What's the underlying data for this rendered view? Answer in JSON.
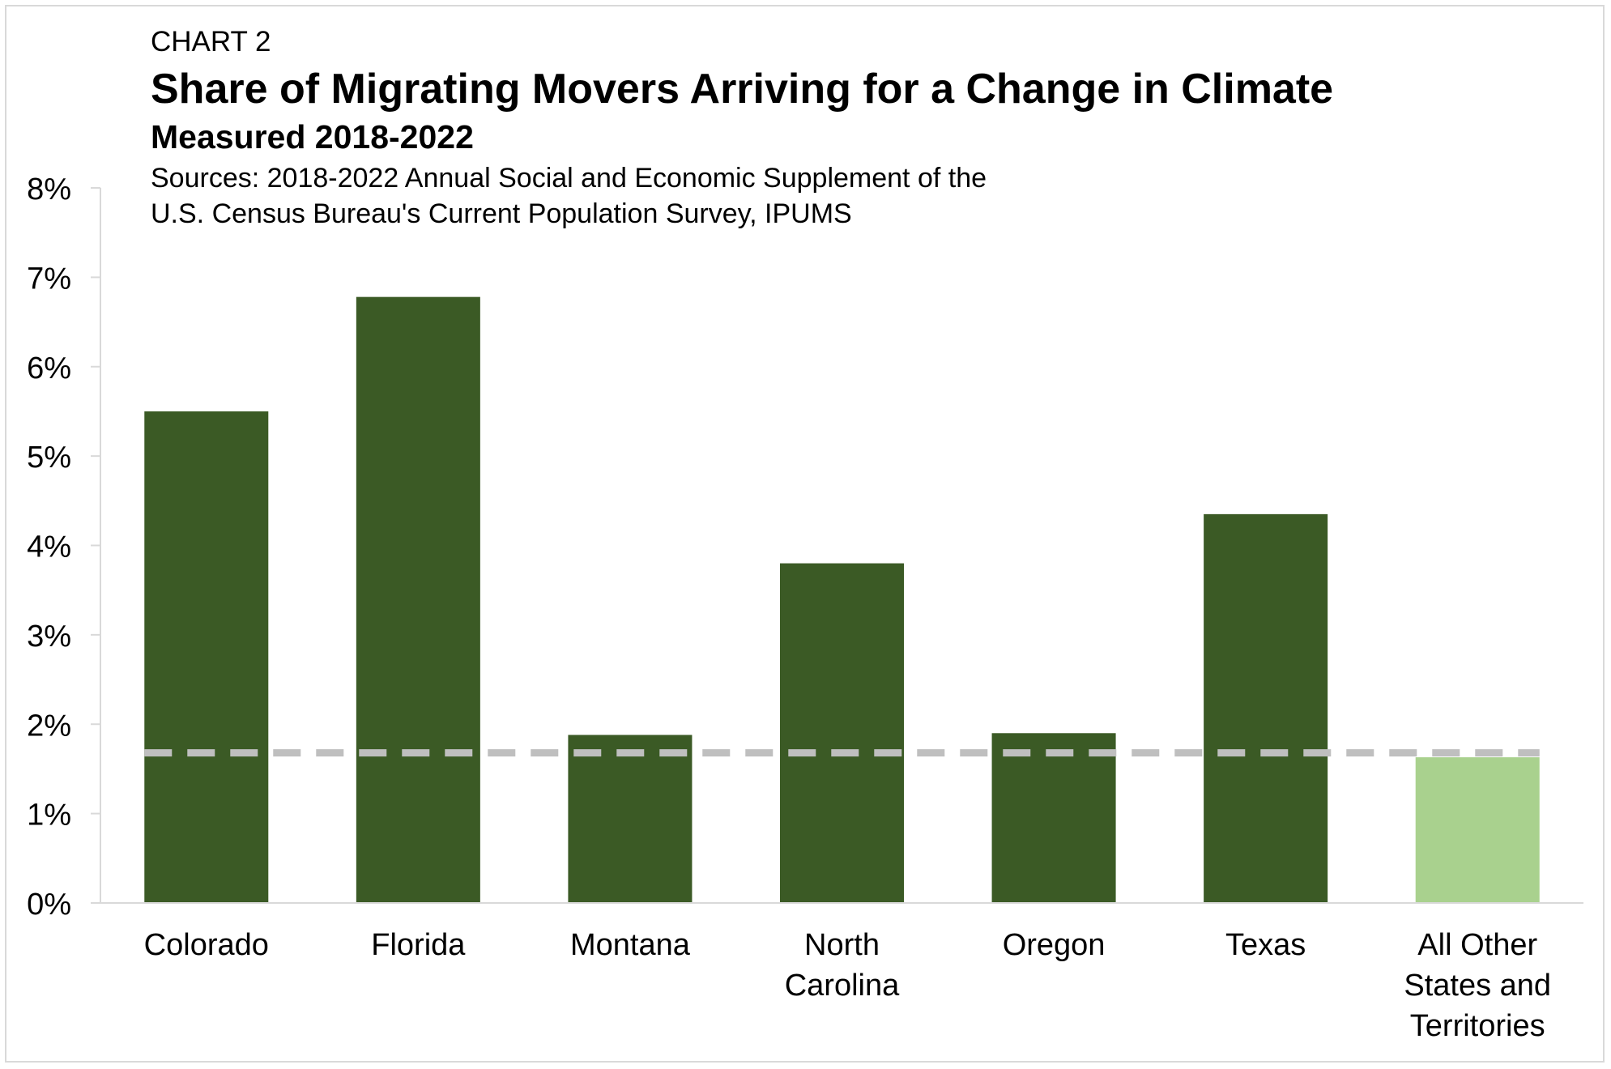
{
  "header": {
    "chart_label": "CHART 2",
    "title": "Share of Migrating Movers Arriving for a Change in Climate",
    "subtitle": "Measured 2018-2022",
    "source_line_1": "Sources: 2018-2022 Annual Social and Economic Supplement of the",
    "source_line_2": "U.S. Census Bureau's Current Population Survey, IPUMS"
  },
  "chart_data": {
    "type": "bar",
    "title": "Share of Migrating Movers Arriving for a Change in Climate",
    "subtitle": "Measured 2018-2022",
    "categories": [
      [
        "Colorado"
      ],
      [
        "Florida"
      ],
      [
        "Montana"
      ],
      [
        "North",
        "Carolina"
      ],
      [
        "Oregon"
      ],
      [
        "Texas"
      ],
      [
        "All Other",
        "States and",
        "Territories"
      ]
    ],
    "values": [
      5.5,
      6.78,
      1.88,
      3.8,
      1.9,
      4.35,
      1.63
    ],
    "bar_colors": [
      "#3b5a25",
      "#3b5a25",
      "#3b5a25",
      "#3b5a25",
      "#3b5a25",
      "#3b5a25",
      "#a9d18e"
    ],
    "reference_line": {
      "value": 1.68,
      "style": "dashed",
      "color": "#bfbfbf"
    },
    "y_ticks": [
      "0%",
      "1%",
      "2%",
      "3%",
      "4%",
      "5%",
      "6%",
      "7%",
      "8%"
    ],
    "ylim": [
      0,
      8
    ],
    "xlabel": "",
    "ylabel": "",
    "grid": false,
    "legend": "none"
  }
}
